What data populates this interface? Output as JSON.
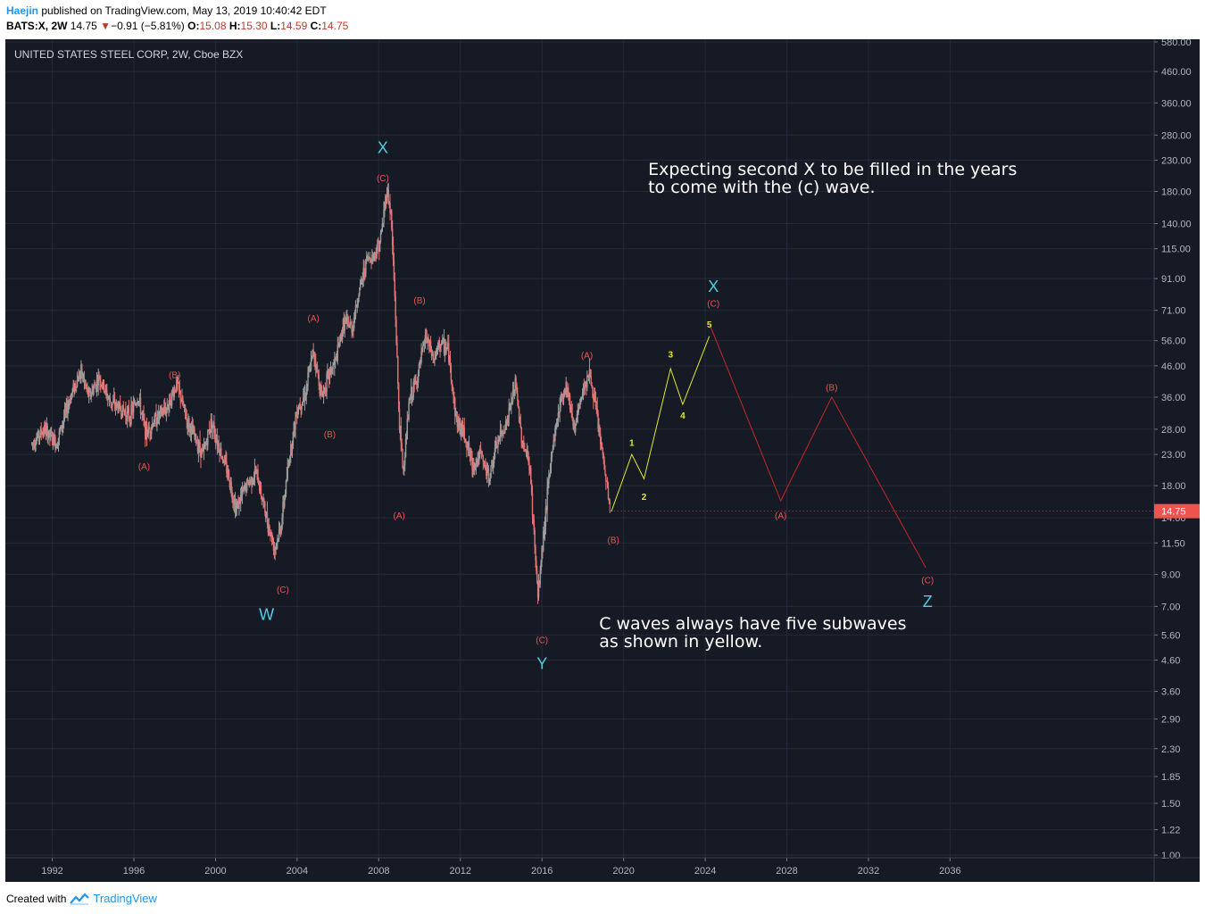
{
  "header": {
    "user": "Haejin",
    "published_text": "published on TradingView.com, May 13, 2019 10:40:42 EDT",
    "symbol": "BATS:X, 2W",
    "price": "14.75",
    "change_arrow": "▼",
    "change": "−0.91 (−5.81%)",
    "o_label": "O:",
    "o_value": "15.08",
    "h_label": "H:",
    "h_value": "15.30",
    "l_label": "L:",
    "l_value": "14.59",
    "c_label": "C:",
    "c_value": "14.75"
  },
  "footer": {
    "created_with": "Created with",
    "brand": "TradingView"
  },
  "colors": {
    "background": "#161a25",
    "grid": "#242938",
    "up": "#9e9e9e",
    "down": "#e57373",
    "yellow_wave": "#e5e52e",
    "red_wave": "#c62828",
    "label_red": "#ef5350",
    "label_cyan": "#4dd0e1",
    "price_tag": "#ef5350"
  },
  "chart_data": {
    "type": "candlestick",
    "title": "UNITED STATES STEEL CORP, 2W, Cboe BZX",
    "scale": "log",
    "xlim": [
      1989.7,
      2046.0
    ],
    "ylim": [
      1.0,
      580.0
    ],
    "x_ticks": [
      "1992",
      "1996",
      "2000",
      "2004",
      "2008",
      "2012",
      "2016",
      "2020",
      "2024",
      "2028",
      "2032",
      "2036"
    ],
    "x_tick_values": [
      1992,
      1996,
      2000,
      2004,
      2008,
      2012,
      2016,
      2020,
      2024,
      2028,
      2032,
      2036
    ],
    "y_ticks": [
      "580.00",
      "460.00",
      "360.00",
      "280.00",
      "230.00",
      "180.00",
      "140.00",
      "115.00",
      "91.00",
      "71.00",
      "56.00",
      "46.00",
      "36.00",
      "28.00",
      "23.00",
      "18.00",
      "14.00",
      "11.50",
      "9.00",
      "7.00",
      "5.60",
      "4.60",
      "3.60",
      "2.90",
      "2.30",
      "1.85",
      "1.50",
      "1.22",
      "1.00"
    ],
    "y_tick_values": [
      580,
      460,
      360,
      280,
      230,
      180,
      140,
      115,
      91,
      71,
      56,
      46,
      36,
      28,
      23,
      18,
      14,
      11.5,
      9,
      7,
      5.6,
      4.6,
      3.6,
      2.9,
      2.3,
      1.85,
      1.5,
      1.22,
      1.0
    ],
    "last_price": {
      "value": 14.75,
      "label": "14.75"
    },
    "price_path": [
      [
        1991.0,
        25
      ],
      [
        1991.6,
        28
      ],
      [
        1992.2,
        25
      ],
      [
        1992.6,
        31
      ],
      [
        1993.0,
        38
      ],
      [
        1993.4,
        44
      ],
      [
        1993.8,
        36
      ],
      [
        1994.3,
        42
      ],
      [
        1994.8,
        35
      ],
      [
        1995.3,
        33
      ],
      [
        1995.8,
        31
      ],
      [
        1996.2,
        36
      ],
      [
        1996.6,
        27
      ],
      [
        1997.0,
        30
      ],
      [
        1997.6,
        33
      ],
      [
        1998.1,
        40
      ],
      [
        1998.6,
        30
      ],
      [
        1999.0,
        26
      ],
      [
        1999.4,
        23
      ],
      [
        1999.8,
        30
      ],
      [
        2000.2,
        24
      ],
      [
        2000.6,
        20
      ],
      [
        2001.0,
        15
      ],
      [
        2001.5,
        18
      ],
      [
        2002.0,
        20
      ],
      [
        2002.5,
        14
      ],
      [
        2002.9,
        11
      ],
      [
        2003.2,
        13
      ],
      [
        2003.6,
        22
      ],
      [
        2004.0,
        33
      ],
      [
        2004.4,
        37
      ],
      [
        2004.8,
        52
      ],
      [
        2005.2,
        36
      ],
      [
        2005.5,
        42
      ],
      [
        2005.9,
        48
      ],
      [
        2006.3,
        65
      ],
      [
        2006.7,
        62
      ],
      [
        2007.0,
        80
      ],
      [
        2007.4,
        105
      ],
      [
        2007.8,
        110
      ],
      [
        2008.1,
        125
      ],
      [
        2008.4,
        185
      ],
      [
        2008.6,
        150
      ],
      [
        2008.8,
        75
      ],
      [
        2009.0,
        30
      ],
      [
        2009.2,
        20
      ],
      [
        2009.5,
        35
      ],
      [
        2009.9,
        42
      ],
      [
        2010.3,
        58
      ],
      [
        2010.7,
        48
      ],
      [
        2011.0,
        55
      ],
      [
        2011.4,
        52
      ],
      [
        2011.8,
        30
      ],
      [
        2012.2,
        27
      ],
      [
        2012.6,
        21
      ],
      [
        2013.0,
        23
      ],
      [
        2013.4,
        19
      ],
      [
        2013.8,
        25
      ],
      [
        2014.3,
        30
      ],
      [
        2014.7,
        40
      ],
      [
        2015.0,
        26
      ],
      [
        2015.4,
        21
      ],
      [
        2015.8,
        7.5
      ],
      [
        2016.1,
        13
      ],
      [
        2016.5,
        24
      ],
      [
        2016.9,
        35
      ],
      [
        2017.2,
        40
      ],
      [
        2017.6,
        28
      ],
      [
        2018.0,
        38
      ],
      [
        2018.3,
        44
      ],
      [
        2018.7,
        31
      ],
      [
        2019.0,
        22
      ],
      [
        2019.35,
        14.75
      ]
    ],
    "yellow_wave": {
      "points": [
        [
          2019.4,
          14.7
        ],
        [
          2020.4,
          23
        ],
        [
          2021.0,
          19
        ],
        [
          2022.3,
          45
        ],
        [
          2022.9,
          34
        ],
        [
          2024.2,
          58
        ]
      ],
      "labels": [
        {
          "text": "1",
          "x": 2020.4,
          "y": 25.3
        },
        {
          "text": "2",
          "x": 2021.0,
          "y": 16.6
        },
        {
          "text": "3",
          "x": 2022.3,
          "y": 50.5
        },
        {
          "text": "4",
          "x": 2022.9,
          "y": 31.3
        },
        {
          "text": "5",
          "x": 2024.2,
          "y": 63.8
        }
      ]
    },
    "red_wave": {
      "points": [
        [
          2024.2,
          64
        ],
        [
          2027.7,
          16
        ],
        [
          2030.2,
          36
        ],
        [
          2034.8,
          9.5
        ]
      ]
    },
    "annotations": [
      {
        "text": "(C)",
        "x": 2008.2,
        "y": 200,
        "color": "red"
      },
      {
        "text": "X",
        "x": 2008.2,
        "y": 255,
        "color": "cyan",
        "size": 18
      },
      {
        "text": "(A)",
        "x": 2004.8,
        "y": 67,
        "color": "red"
      },
      {
        "text": "(B)",
        "x": 2005.6,
        "y": 27,
        "color": "red"
      },
      {
        "text": "(C)",
        "x": 2003.3,
        "y": 8.0,
        "color": "red"
      },
      {
        "text": "W",
        "x": 2002.5,
        "y": 6.6,
        "color": "cyan",
        "size": 18
      },
      {
        "text": "(B)",
        "x": 1998.0,
        "y": 43,
        "color": "red"
      },
      {
        "text": "(A)",
        "x": 1996.5,
        "y": 21,
        "color": "red"
      },
      {
        "text": "(B)",
        "x": 2010.0,
        "y": 77,
        "color": "red"
      },
      {
        "text": "(A)",
        "x": 2009.0,
        "y": 14.3,
        "color": "red"
      },
      {
        "text": "(A)",
        "x": 2018.2,
        "y": 50,
        "color": "red"
      },
      {
        "text": "(B)",
        "x": 2019.5,
        "y": 11.8,
        "color": "red"
      },
      {
        "text": "(C)",
        "x": 2016.0,
        "y": 5.4,
        "color": "red"
      },
      {
        "text": "Y",
        "x": 2016.0,
        "y": 4.5,
        "color": "cyan",
        "size": 18
      },
      {
        "text": "(C)",
        "x": 2024.4,
        "y": 75,
        "color": "red"
      },
      {
        "text": "X",
        "x": 2024.4,
        "y": 86,
        "color": "cyan",
        "size": 18
      },
      {
        "text": "(A)",
        "x": 2027.7,
        "y": 14.3,
        "color": "red"
      },
      {
        "text": "(B)",
        "x": 2030.2,
        "y": 39,
        "color": "red"
      },
      {
        "text": "(C)",
        "x": 2034.9,
        "y": 8.6,
        "color": "red"
      },
      {
        "text": "Z",
        "x": 2034.9,
        "y": 7.3,
        "color": "cyan",
        "size": 18
      }
    ],
    "notes": [
      {
        "lines": [
          "Expecting second X to be filled in the years",
          "to come with the (c) wave."
        ],
        "x": 2021.2,
        "y": 205
      },
      {
        "lines": [
          "C waves always have five subwaves",
          "as shown in yellow."
        ],
        "x": 2018.8,
        "y": 5.85
      }
    ]
  }
}
